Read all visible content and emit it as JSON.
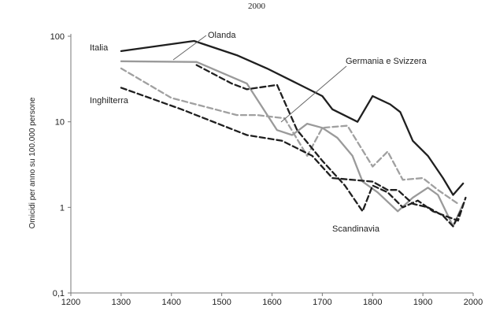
{
  "top_text": "2000",
  "chart_data": {
    "type": "line",
    "title": "",
    "xlabel": "",
    "ylabel": "Omicidi per anno su 100.000 persone",
    "xlim": [
      1200,
      2000
    ],
    "ylim": [
      0.1,
      100
    ],
    "y_scale": "log",
    "x_ticks": [
      1200,
      1300,
      1400,
      1500,
      1600,
      1700,
      1800,
      1900,
      2000
    ],
    "y_ticks": [
      {
        "value": 0.1,
        "label": "0,1"
      },
      {
        "value": 1,
        "label": "1"
      },
      {
        "value": 10,
        "label": "10"
      },
      {
        "value": 100,
        "label": "100"
      }
    ],
    "grid": false,
    "legend": "direct labels on chart",
    "series": [
      {
        "name": "Italia",
        "color": "#1f1f1f",
        "style": "solid",
        "points": [
          [
            1300,
            67
          ],
          [
            1445,
            88
          ],
          [
            1530,
            60
          ],
          [
            1590,
            42
          ],
          [
            1640,
            30
          ],
          [
            1700,
            20
          ],
          [
            1720,
            14
          ],
          [
            1770,
            10
          ],
          [
            1800,
            20
          ],
          [
            1835,
            16
          ],
          [
            1855,
            13
          ],
          [
            1880,
            6
          ],
          [
            1910,
            4
          ],
          [
            1940,
            2.2
          ],
          [
            1960,
            1.4
          ],
          [
            1980,
            1.9
          ]
        ]
      },
      {
        "name": "Olanda",
        "color": "#9a9a9a",
        "style": "solid",
        "points": [
          [
            1300,
            51
          ],
          [
            1450,
            50
          ],
          [
            1550,
            28
          ],
          [
            1610,
            8
          ],
          [
            1640,
            7
          ],
          [
            1670,
            9.5
          ],
          [
            1700,
            8.5
          ],
          [
            1730,
            6.5
          ],
          [
            1760,
            4
          ],
          [
            1780,
            2
          ],
          [
            1810,
            1.5
          ],
          [
            1850,
            0.9
          ],
          [
            1880,
            1.3
          ],
          [
            1910,
            1.7
          ],
          [
            1930,
            1.4
          ],
          [
            1960,
            0.6
          ],
          [
            1980,
            1.1
          ]
        ]
      },
      {
        "name": "Germania e Svizzera",
        "color": "#a0a0a0",
        "style": "dashed",
        "points": [
          [
            1300,
            42
          ],
          [
            1400,
            19
          ],
          [
            1530,
            12
          ],
          [
            1570,
            12
          ],
          [
            1625,
            11
          ],
          [
            1670,
            4
          ],
          [
            1700,
            8.5
          ],
          [
            1750,
            9
          ],
          [
            1800,
            3
          ],
          [
            1830,
            4.5
          ],
          [
            1860,
            2.1
          ],
          [
            1900,
            2.2
          ],
          [
            1930,
            1.6
          ],
          [
            1970,
            1.1
          ]
        ]
      },
      {
        "name": "Inghilterra",
        "color": "#1f1f1f",
        "style": "dashed",
        "points": [
          [
            1300,
            25
          ],
          [
            1420,
            14
          ],
          [
            1550,
            7
          ],
          [
            1620,
            6
          ],
          [
            1680,
            4
          ],
          [
            1720,
            2.2
          ],
          [
            1800,
            2
          ],
          [
            1830,
            1.6
          ],
          [
            1850,
            1.6
          ],
          [
            1880,
            1.1
          ],
          [
            1910,
            1
          ],
          [
            1940,
            0.8
          ],
          [
            1960,
            0.6
          ],
          [
            1975,
            0.9
          ]
        ]
      },
      {
        "name": "Scandinavia",
        "color": "#1f1f1f",
        "style": "dashed",
        "points": [
          [
            1450,
            46
          ],
          [
            1520,
            28
          ],
          [
            1550,
            24
          ],
          [
            1610,
            27
          ],
          [
            1650,
            8
          ],
          [
            1700,
            3.5
          ],
          [
            1745,
            1.8
          ],
          [
            1780,
            0.9
          ],
          [
            1800,
            1.8
          ],
          [
            1830,
            1.5
          ],
          [
            1860,
            1
          ],
          [
            1890,
            1.2
          ],
          [
            1920,
            0.9
          ],
          [
            1970,
            0.7
          ],
          [
            1985,
            1.3
          ]
        ]
      }
    ]
  }
}
